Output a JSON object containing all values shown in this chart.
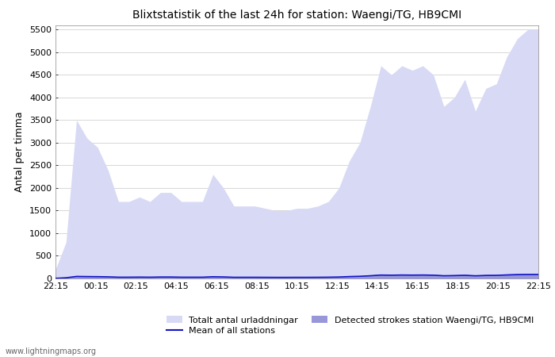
{
  "title": "Blixtstatistik of the last 24h for station: Waengi/TG, HB9CMI",
  "ylabel": "Antal per timma",
  "yticks": [
    0,
    500,
    1000,
    1500,
    2000,
    2500,
    3000,
    3500,
    4000,
    4500,
    5000,
    5500
  ],
  "ylim": [
    0,
    5600
  ],
  "xtick_labels": [
    "22:15",
    "00:15",
    "02:15",
    "04:15",
    "06:15",
    "08:15",
    "10:15",
    "12:15",
    "14:15",
    "16:15",
    "18:15",
    "20:15",
    "22:15"
  ],
  "color_total": "#d8daf5",
  "color_detected": "#9898d8",
  "color_mean": "#1414c8",
  "watermark": "www.lightningmaps.org",
  "legend_total": "Totalt antal urladdningar",
  "legend_detected": "Detected strokes station Waengi/TG, HB9CMI",
  "legend_mean": "Mean of all stations",
  "total_urladdningar": [
    200,
    800,
    3500,
    3100,
    2900,
    2400,
    1700,
    1700,
    1800,
    1700,
    1900,
    1900,
    1700,
    1700,
    1700,
    2300,
    2000,
    1600,
    1600,
    1600,
    1550,
    1500,
    1500,
    1550,
    1550,
    1600,
    1700,
    2000,
    2600,
    3000,
    3800,
    4700,
    4500,
    4700,
    4600,
    4700,
    4500,
    3800,
    4000,
    4400,
    3700,
    4200,
    4300,
    4900,
    5300,
    5500,
    5500
  ],
  "detected_strokes": [
    5,
    20,
    60,
    55,
    50,
    45,
    35,
    35,
    38,
    35,
    40,
    40,
    35,
    35,
    35,
    48,
    42,
    32,
    32,
    32,
    31,
    30,
    30,
    31,
    31,
    32,
    35,
    40,
    52,
    60,
    76,
    95,
    90,
    95,
    92,
    95,
    90,
    76,
    80,
    88,
    74,
    84,
    86,
    98,
    106,
    110,
    110
  ],
  "mean_stations": [
    3,
    15,
    45,
    42,
    40,
    36,
    28,
    28,
    30,
    28,
    32,
    32,
    28,
    28,
    28,
    38,
    34,
    26,
    26,
    26,
    25,
    24,
    24,
    25,
    25,
    26,
    28,
    32,
    42,
    48,
    60,
    75,
    72,
    76,
    74,
    76,
    72,
    60,
    64,
    70,
    59,
    67,
    69,
    78,
    85,
    88,
    88
  ],
  "n_points": 47
}
